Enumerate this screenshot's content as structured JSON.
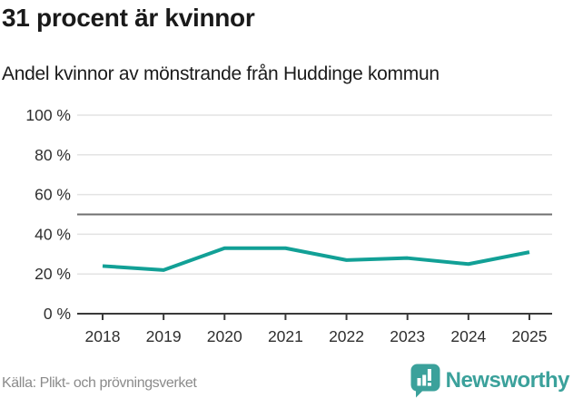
{
  "header": {
    "title": "31 procent är kvinnor",
    "subtitle": "Andel kvinnor av mönstrande från Huddinge kommun"
  },
  "chart_data": {
    "type": "line",
    "title": "31 procent är kvinnor",
    "subtitle": "Andel kvinnor av mönstrande från Huddinge kommun",
    "categories": [
      "2018",
      "2019",
      "2020",
      "2021",
      "2022",
      "2023",
      "2024",
      "2025"
    ],
    "series": [
      {
        "name": "Andel kvinnor av mönstrande",
        "values": [
          24,
          22,
          33,
          33,
          27,
          28,
          25,
          31
        ]
      }
    ],
    "xlabel": "",
    "ylabel": "",
    "ylim": [
      0,
      100
    ],
    "ytick_step": 20,
    "ytick_suffix": " %",
    "reference_line": 50,
    "grid": true,
    "legend": "none"
  },
  "footer": {
    "source": "Källa: Plikt- och prövningsverket",
    "brand": "Newsworthy"
  },
  "colors": {
    "line": "#12a096",
    "grid": "#e3e3e3",
    "reference": "#6f6f6f",
    "axis": "#3a3a3a",
    "tick_label": "#2e2e2e",
    "title": "#1a1a1a",
    "source_text": "#8b8b8b",
    "brand_teal": "#3ba19b"
  }
}
